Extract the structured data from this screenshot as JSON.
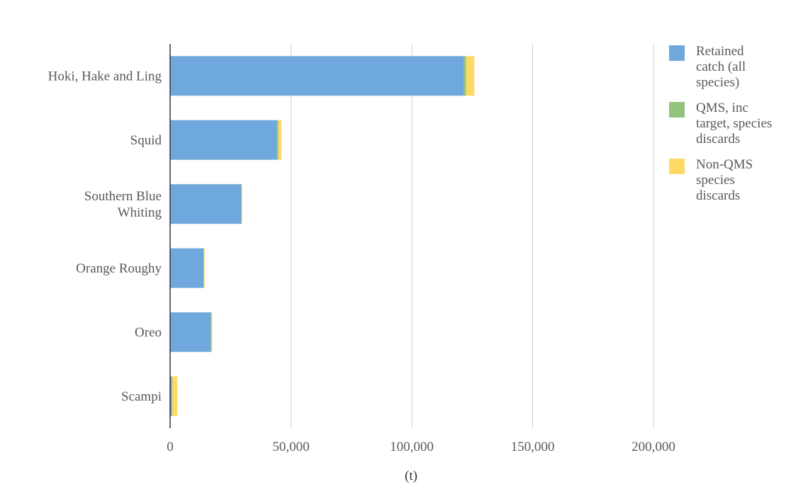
{
  "chart_data": {
    "type": "bar",
    "orientation": "horizontal",
    "stacked": true,
    "categories": [
      "Hoki, Hake and Ling",
      "Squid",
      "Southern Blue Whiting",
      "Orange Roughy",
      "Oreo",
      "Scampi"
    ],
    "series": [
      {
        "name": "Retained catch (all species)",
        "color": "#6fa8dc",
        "values": [
          121500,
          44200,
          29500,
          13800,
          16800,
          700
        ]
      },
      {
        "name": "QMS, inc target, species discards",
        "color": "#93c47d",
        "values": [
          1000,
          600,
          150,
          200,
          400,
          200
        ]
      },
      {
        "name": "Non-QMS species discards",
        "color": "#ffd966",
        "values": [
          3400,
          1300,
          150,
          300,
          200,
          2100
        ]
      }
    ],
    "x_ticks": [
      "0",
      "50,000",
      "100,000",
      "150,000",
      "200,000"
    ],
    "x_tick_values": [
      0,
      50000,
      100000,
      150000,
      200000
    ],
    "xlim": [
      0,
      200000
    ],
    "xlabel": "(t)",
    "ylabel": "",
    "title": "",
    "grid": "vertical",
    "legend_position": "right"
  }
}
